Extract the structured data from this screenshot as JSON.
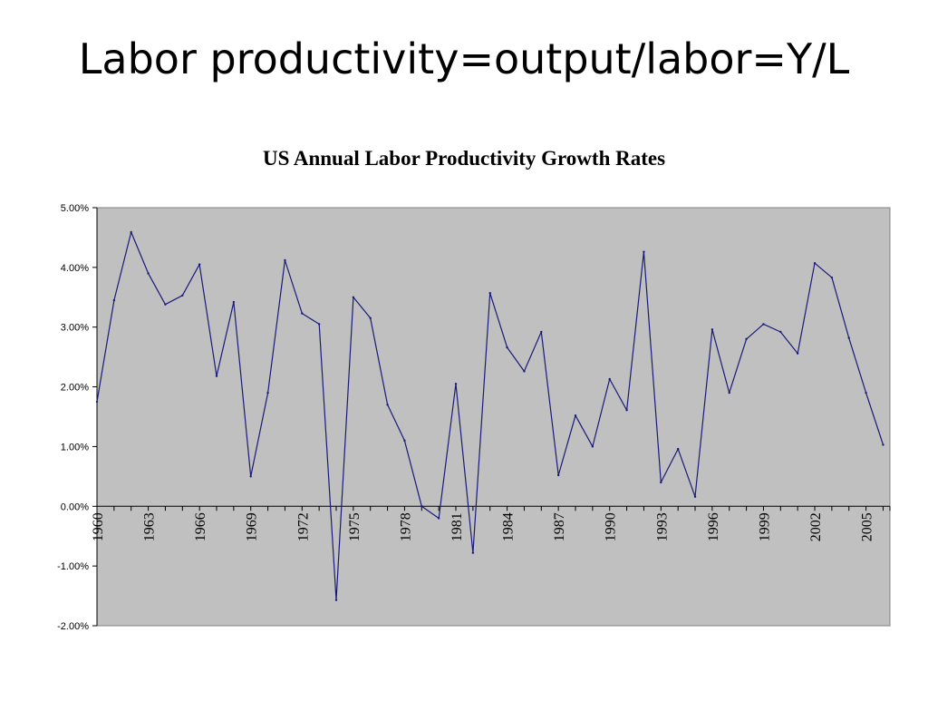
{
  "slide": {
    "title": "Labor productivity=output/labor=Y/L"
  },
  "colors": {
    "plot_background": "#c0c0c0",
    "line": "#1a1a7a",
    "axis": "#000000"
  },
  "chart_data": {
    "type": "line",
    "title": "US Annual Labor Productivity Growth Rates",
    "xlabel": "",
    "ylabel": "",
    "ylim": [
      -0.02,
      0.05
    ],
    "y_tick_labels": [
      "5.00%",
      "4.00%",
      "3.00%",
      "2.00%",
      "1.00%",
      "0.00%",
      "-1.00%",
      "-2.00%"
    ],
    "y_ticks": [
      0.05,
      0.04,
      0.03,
      0.02,
      0.01,
      0.0,
      -0.01,
      -0.02
    ],
    "x_tick_labels": [
      "1960",
      "1963",
      "1966",
      "1969",
      "1972",
      "1975",
      "1978",
      "1981",
      "1984",
      "1987",
      "1990",
      "1993",
      "1996",
      "1999",
      "2002",
      "2005"
    ],
    "grid": false,
    "legend": "none",
    "series": [
      {
        "x": [
          1960,
          1961,
          1962,
          1963,
          1964,
          1965,
          1966,
          1967,
          1968,
          1969,
          1970,
          1971,
          1972,
          1973,
          1974,
          1975,
          1976,
          1977,
          1978,
          1979,
          1980,
          1981,
          1982,
          1983,
          1984,
          1985,
          1986,
          1987,
          1988,
          1989,
          1990,
          1991,
          1992,
          1993,
          1994,
          1995,
          1996,
          1997,
          1998,
          1999,
          2000,
          2001,
          2002,
          2003,
          2004,
          2005,
          2006
        ],
        "values": [
          0.0175,
          0.0345,
          0.0459,
          0.039,
          0.0338,
          0.0353,
          0.0405,
          0.0218,
          0.0342,
          0.005,
          0.019,
          0.0412,
          0.0323,
          0.0305,
          -0.0157,
          0.035,
          0.0315,
          0.017,
          0.011,
          0.0,
          -0.002,
          0.0205,
          -0.0078,
          0.0357,
          0.0266,
          0.0226,
          0.0292,
          0.0052,
          0.0152,
          0.01,
          0.0213,
          0.0161,
          0.0426,
          0.004,
          0.0096,
          0.0016,
          0.0296,
          0.019,
          0.028,
          0.0305,
          0.0292,
          0.0256,
          0.0407,
          0.0383,
          0.0282,
          0.019,
          0.0103
        ]
      }
    ]
  }
}
